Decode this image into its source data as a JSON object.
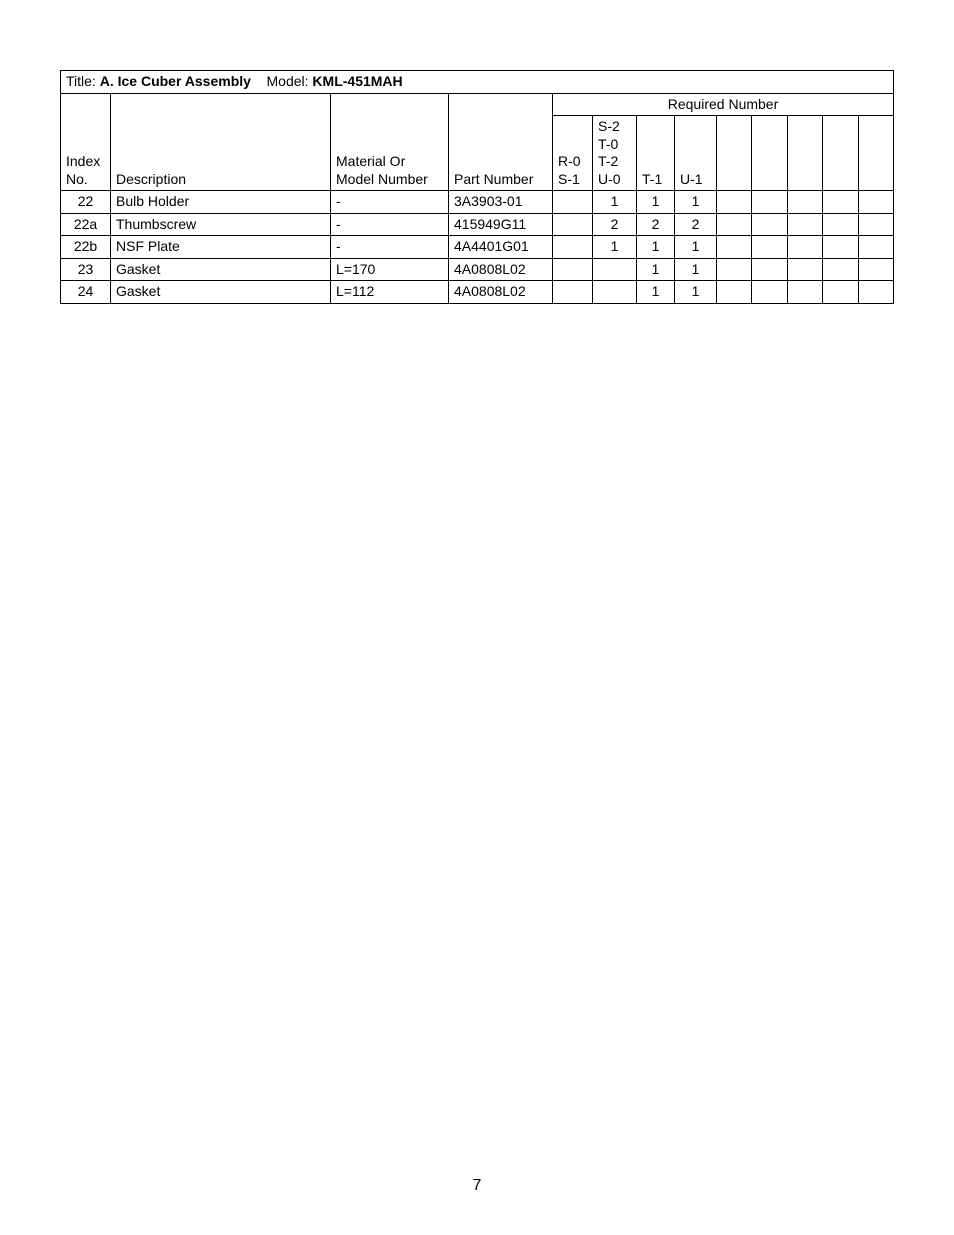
{
  "title_label": "Title:",
  "title_value": "A. Ice Cuber Assembly",
  "model_label": "Model:",
  "model_value": "KML-451MAH",
  "required_number_label": "Required Number",
  "header": {
    "index_no_l1": "Index",
    "index_no_l2": "No.",
    "description": "Description",
    "material_l1": "Material Or",
    "material_l2": "Model Number",
    "part_number": "Part Number",
    "col_r0_l1": "R-0",
    "col_r0_l2": "S-1",
    "col_s2_l1": "S-2",
    "col_s2_l2": "T-0",
    "col_s2_l3": "T-2",
    "col_s2_l4": "U-0",
    "col_t1": "T-1",
    "col_u1": "U-1"
  },
  "rows": [
    {
      "index": "22",
      "desc": "Bulb Holder",
      "material": "-",
      "part": "3A3903-01",
      "r0": "",
      "s2": "1",
      "t1": "1",
      "u1": "1"
    },
    {
      "index": "22a",
      "desc": "Thumbscrew",
      "material": "-",
      "part": "415949G11",
      "r0": "",
      "s2": "2",
      "t1": "2",
      "u1": "2"
    },
    {
      "index": "22b",
      "desc": "NSF Plate",
      "material": "-",
      "part": "4A4401G01",
      "r0": "",
      "s2": "1",
      "t1": "1",
      "u1": "1"
    },
    {
      "index": "23",
      "desc": "Gasket",
      "material": "L=170",
      "part": "4A0808L02",
      "r0": "",
      "s2": "",
      "t1": "1",
      "u1": "1"
    },
    {
      "index": "24",
      "desc": "Gasket",
      "material": "L=112",
      "part": "4A0808L02",
      "r0": "",
      "s2": "",
      "t1": "1",
      "u1": "1"
    }
  ],
  "page_number": "7"
}
